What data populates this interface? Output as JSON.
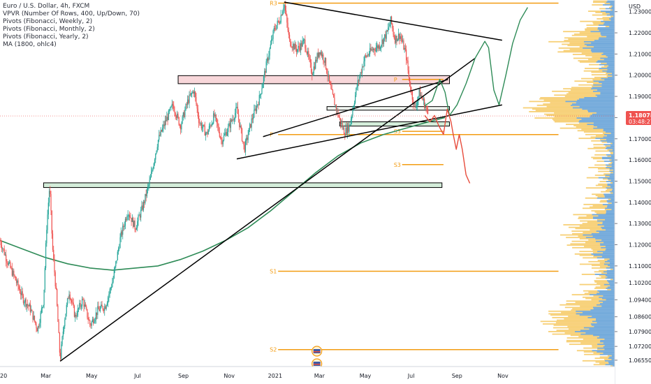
{
  "legend": {
    "symbol": "Euro / U.S. Dollar, 4h, FXCM",
    "indicators": [
      "VPVR (Number Of Rows, 400, Up/Down, 70)",
      "Pivots (Fibonacci, Weekly, 2)",
      "Pivots (Fibonacci, Monthly, 2)",
      "Pivots (Fibonacci, Yearly, 2)",
      "MA (1800, ohlc4)"
    ]
  },
  "colors": {
    "up": "#26a69a",
    "down": "#ef5350",
    "ma": "#2e8b57",
    "pivot": "#f39c12",
    "vp_up": "#5b9bd5",
    "vp_down": "#f6c85f",
    "price_tag": "#ef5350"
  },
  "chart_data": {
    "type": "candlestick",
    "title": "Euro / U.S. Dollar, 4h, FXCM",
    "y_axis": {
      "ylim": [
        1.0625,
        1.2355
      ],
      "tick_labels": [
        "1.23000",
        "1.22000",
        "1.21000",
        "1.20000",
        "1.19000",
        "1.18000",
        "1.17000",
        "1.16000",
        "1.15000",
        "1.14000",
        "1.13000",
        "1.12000",
        "1.11000",
        "1.10200",
        "1.09400",
        "1.08600",
        "1.07900",
        "1.07200",
        "1.06550"
      ],
      "tick_values": [
        1.23,
        1.22,
        1.21,
        1.2,
        1.19,
        1.18,
        1.17,
        1.16,
        1.15,
        1.14,
        1.13,
        1.12,
        1.11,
        1.102,
        1.094,
        1.086,
        1.079,
        1.072,
        1.0655
      ],
      "currency": "USD",
      "last_price": "1.18078",
      "countdown": "03:48:27"
    },
    "x_axis": {
      "tick_labels": [
        "20",
        "Mar",
        "May",
        "Jul",
        "Sep",
        "Nov",
        "2021",
        "Mar",
        "May",
        "Jul",
        "Sep",
        "Nov"
      ],
      "tick_t": [
        0,
        61,
        122,
        183,
        244,
        305,
        366,
        425,
        486,
        547,
        608,
        669
      ]
    },
    "price_path": [
      {
        "t": 0,
        "p": 1.122
      },
      {
        "t": 10,
        "p": 1.112
      },
      {
        "t": 20,
        "p": 1.104
      },
      {
        "t": 30,
        "p": 1.095
      },
      {
        "t": 40,
        "p": 1.09
      },
      {
        "t": 50,
        "p": 1.08
      },
      {
        "t": 58,
        "p": 1.094
      },
      {
        "t": 62,
        "p": 1.128
      },
      {
        "t": 66,
        "p": 1.148
      },
      {
        "t": 70,
        "p": 1.118
      },
      {
        "t": 75,
        "p": 1.096
      },
      {
        "t": 80,
        "p": 1.0655
      },
      {
        "t": 85,
        "p": 1.083
      },
      {
        "t": 92,
        "p": 1.098
      },
      {
        "t": 100,
        "p": 1.086
      },
      {
        "t": 110,
        "p": 1.094
      },
      {
        "t": 120,
        "p": 1.082
      },
      {
        "t": 130,
        "p": 1.089
      },
      {
        "t": 140,
        "p": 1.091
      },
      {
        "t": 150,
        "p": 1.103
      },
      {
        "t": 160,
        "p": 1.123
      },
      {
        "t": 170,
        "p": 1.136
      },
      {
        "t": 180,
        "p": 1.128
      },
      {
        "t": 190,
        "p": 1.138
      },
      {
        "t": 200,
        "p": 1.151
      },
      {
        "t": 210,
        "p": 1.169
      },
      {
        "t": 220,
        "p": 1.178
      },
      {
        "t": 230,
        "p": 1.186
      },
      {
        "t": 240,
        "p": 1.176
      },
      {
        "t": 250,
        "p": 1.188
      },
      {
        "t": 258,
        "p": 1.193
      },
      {
        "t": 265,
        "p": 1.178
      },
      {
        "t": 275,
        "p": 1.172
      },
      {
        "t": 285,
        "p": 1.181
      },
      {
        "t": 295,
        "p": 1.169
      },
      {
        "t": 305,
        "p": 1.176
      },
      {
        "t": 315,
        "p": 1.184
      },
      {
        "t": 325,
        "p": 1.165
      },
      {
        "t": 335,
        "p": 1.179
      },
      {
        "t": 345,
        "p": 1.189
      },
      {
        "t": 355,
        "p": 1.206
      },
      {
        "t": 365,
        "p": 1.222
      },
      {
        "t": 372,
        "p": 1.226
      },
      {
        "t": 378,
        "p": 1.234
      },
      {
        "t": 385,
        "p": 1.216
      },
      {
        "t": 395,
        "p": 1.212
      },
      {
        "t": 405,
        "p": 1.216
      },
      {
        "t": 415,
        "p": 1.201
      },
      {
        "t": 425,
        "p": 1.212
      },
      {
        "t": 432,
        "p": 1.207
      },
      {
        "t": 440,
        "p": 1.193
      },
      {
        "t": 450,
        "p": 1.181
      },
      {
        "t": 458,
        "p": 1.173
      },
      {
        "t": 465,
        "p": 1.176
      },
      {
        "t": 475,
        "p": 1.195
      },
      {
        "t": 485,
        "p": 1.208
      },
      {
        "t": 495,
        "p": 1.212
      },
      {
        "t": 505,
        "p": 1.214
      },
      {
        "t": 515,
        "p": 1.22
      },
      {
        "t": 520,
        "p": 1.226
      },
      {
        "t": 525,
        "p": 1.217
      },
      {
        "t": 532,
        "p": 1.219
      },
      {
        "t": 540,
        "p": 1.21
      },
      {
        "t": 545,
        "p": 1.196
      },
      {
        "t": 552,
        "p": 1.184
      },
      {
        "t": 558,
        "p": 1.192
      },
      {
        "t": 564,
        "p": 1.187
      },
      {
        "t": 570,
        "p": 1.181
      }
    ],
    "ma_1800": [
      {
        "t": 0,
        "p": 1.122
      },
      {
        "t": 30,
        "p": 1.118
      },
      {
        "t": 60,
        "p": 1.114
      },
      {
        "t": 90,
        "p": 1.111
      },
      {
        "t": 120,
        "p": 1.109
      },
      {
        "t": 150,
        "p": 1.108
      },
      {
        "t": 180,
        "p": 1.109
      },
      {
        "t": 210,
        "p": 1.11
      },
      {
        "t": 240,
        "p": 1.113
      },
      {
        "t": 270,
        "p": 1.117
      },
      {
        "t": 300,
        "p": 1.122
      },
      {
        "t": 330,
        "p": 1.128
      },
      {
        "t": 360,
        "p": 1.136
      },
      {
        "t": 390,
        "p": 1.145
      },
      {
        "t": 420,
        "p": 1.154
      },
      {
        "t": 450,
        "p": 1.162
      },
      {
        "t": 480,
        "p": 1.168
      },
      {
        "t": 510,
        "p": 1.172
      },
      {
        "t": 540,
        "p": 1.175
      },
      {
        "t": 570,
        "p": 1.178
      },
      {
        "t": 592,
        "p": 1.18
      }
    ],
    "pivots": [
      {
        "label": "R3",
        "p": 1.234,
        "t0": 370,
        "t1": 743
      },
      {
        "label": "R3",
        "p": 1.237,
        "t0": 535,
        "t1": 590
      },
      {
        "label": "P",
        "p": 1.198,
        "t0": 535,
        "t1": 590
      },
      {
        "label": "P",
        "p": 1.172,
        "t0": 370,
        "t1": 743
      },
      {
        "label": "S3",
        "p": 1.1735,
        "t0": 535,
        "t1": 590
      },
      {
        "label": "S3",
        "p": 1.1578,
        "t0": 535,
        "t1": 590
      },
      {
        "label": "S1",
        "p": 1.1075,
        "t0": 370,
        "t1": 743
      },
      {
        "label": "S2",
        "p": 1.0705,
        "t0": 370,
        "t1": 743
      }
    ],
    "zones": [
      {
        "t0": 237,
        "t1": 598,
        "p_top": 1.1998,
        "p_bot": 1.196,
        "kind": "supply"
      },
      {
        "t0": 58,
        "t1": 588,
        "p_top": 1.1492,
        "p_bot": 1.147,
        "kind": "demand"
      },
      {
        "t0": 435,
        "t1": 598,
        "p_top": 1.1852,
        "p_bot": 1.1835,
        "kind": "neutral"
      },
      {
        "t0": 452,
        "t1": 598,
        "p_top": 1.178,
        "p_bot": 1.176,
        "kind": "demand"
      }
    ],
    "trendlines": [
      {
        "t0": 80,
        "p0": 1.065,
        "t1": 632,
        "p1": 1.208
      },
      {
        "t0": 378,
        "p0": 1.2345,
        "t1": 668,
        "p1": 1.2165
      },
      {
        "t0": 315,
        "p0": 1.1605,
        "t1": 668,
        "p1": 1.186
      },
      {
        "t0": 350,
        "p0": 1.171,
        "t1": 596,
        "p1": 1.198
      }
    ],
    "projections": [
      {
        "color": "#2e8b57",
        "points": [
          {
            "t": 565,
            "p": 1.1855
          },
          {
            "t": 575,
            "p": 1.188
          },
          {
            "t": 585,
            "p": 1.198
          },
          {
            "t": 592,
            "p": 1.192
          },
          {
            "t": 598,
            "p": 1.181
          },
          {
            "t": 608,
            "p": 1.186
          },
          {
            "t": 620,
            "p": 1.196
          },
          {
            "t": 632,
            "p": 1.208
          },
          {
            "t": 645,
            "p": 1.216
          },
          {
            "t": 650,
            "p": 1.213
          },
          {
            "t": 657,
            "p": 1.193
          },
          {
            "t": 664,
            "p": 1.186
          },
          {
            "t": 673,
            "p": 1.2
          },
          {
            "t": 682,
            "p": 1.215
          },
          {
            "t": 692,
            "p": 1.226
          },
          {
            "t": 702,
            "p": 1.232
          }
        ]
      },
      {
        "color": "#e74c3c",
        "points": [
          {
            "t": 565,
            "p": 1.181
          },
          {
            "t": 572,
            "p": 1.178
          },
          {
            "t": 578,
            "p": 1.181
          },
          {
            "t": 584,
            "p": 1.176
          },
          {
            "t": 590,
            "p": 1.172
          },
          {
            "t": 595,
            "p": 1.184
          },
          {
            "t": 600,
            "p": 1.178
          },
          {
            "t": 603,
            "p": 1.172
          },
          {
            "t": 607,
            "p": 1.165
          },
          {
            "t": 611,
            "p": 1.172
          },
          {
            "t": 615,
            "p": 1.165
          },
          {
            "t": 620,
            "p": 1.153
          },
          {
            "t": 625,
            "p": 1.149
          }
        ]
      }
    ]
  }
}
